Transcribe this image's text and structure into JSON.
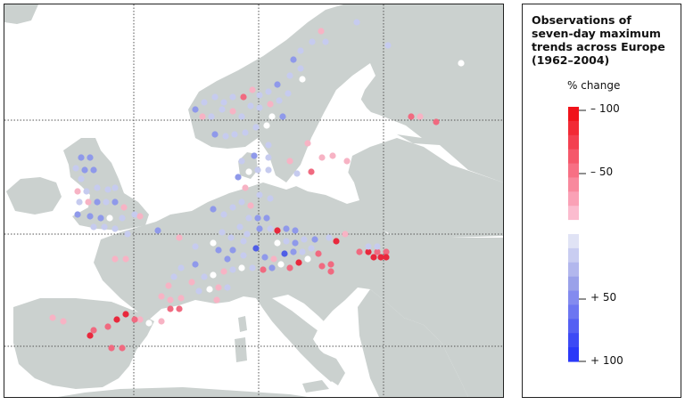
{
  "title": "Observations of seven-day maximum trends across Europe (1962–2004)",
  "legend": {
    "unit_label": "% change",
    "tick_labels": [
      "– 100",
      "– 50",
      "+ 50",
      "+ 100"
    ],
    "colors_top_to_bottom": [
      "#f0131a",
      "#f22a35",
      "#f34050",
      "#f5586a",
      "#f77084",
      "#f8899d",
      "#faa1b6",
      "#fbbccf",
      "#ffffff",
      "#e0e3f5",
      "#c9cdf1",
      "#b2b7ed",
      "#9aa1e9",
      "#838bef",
      "#6c76f1",
      "#5560f3",
      "#3d4af5",
      "#2a38f8"
    ]
  },
  "map": {
    "land_color": "#cbd1cf",
    "sea_color": "#ffffff",
    "gridlines": "dotted",
    "stations_note_colors": {
      "decrease": "#e8283c",
      "neutral": "#ffffff",
      "increase": "#5566e6"
    }
  }
}
